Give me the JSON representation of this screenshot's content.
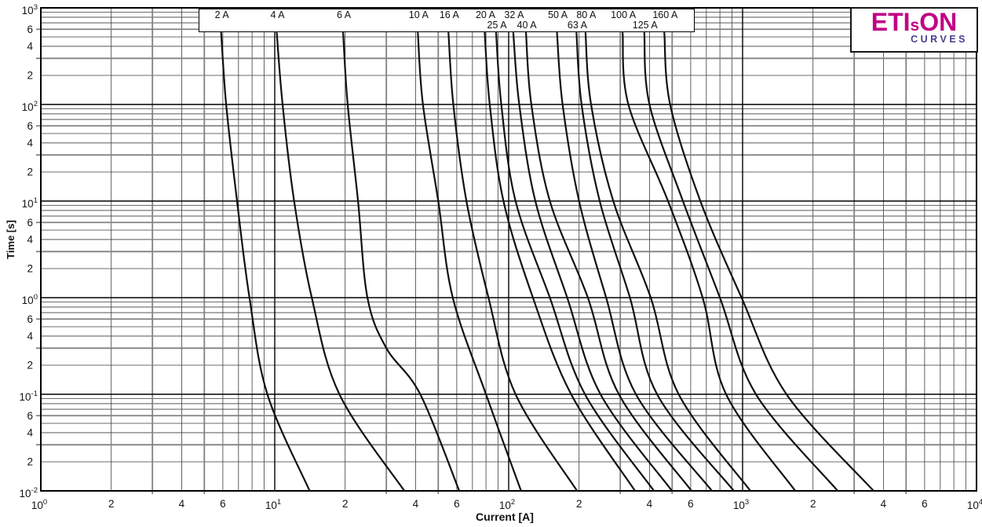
{
  "logo": {
    "brand_primary": "ETI",
    "brand_small": "s",
    "brand_secondary": "ON",
    "subtitle": "CURVES",
    "color_primary": "#C10087",
    "color_secondary": "#45418F"
  },
  "axes": {
    "x": {
      "label": "Current [A]",
      "unit": "A",
      "scale": "log",
      "decade_exponents": [
        0,
        1,
        2,
        3,
        4
      ],
      "sub_tick_labels": [
        2,
        4,
        6
      ],
      "range": [
        1,
        10000
      ]
    },
    "y": {
      "label": "Time [s]",
      "unit": "s",
      "scale": "log",
      "decade_exponents": [
        3,
        2,
        1,
        0,
        -1,
        -2
      ],
      "sub_tick_labels": [
        2,
        4,
        6
      ],
      "range": [
        0.01,
        1000
      ]
    }
  },
  "chart_data": {
    "type": "line",
    "title": "",
    "xlabel": "Current [A]",
    "ylabel": "Time [s]",
    "xlim": [
      1,
      10000
    ],
    "ylim": [
      0.01,
      1000
    ],
    "grid": "log-log, all minor decade lines shown, emphasized lines at 3/6 (horizontal) and 3/5 (vertical)",
    "legend_position": "label band across top of plot",
    "curve_color": "#111111",
    "series": [
      {
        "name": "2 A",
        "rating_A": 2,
        "label_row": 1,
        "points_time_current": [
          [
            550,
            5.9
          ],
          [
            100,
            6.2
          ],
          [
            10,
            6.9
          ],
          [
            1,
            7.8
          ],
          [
            0.1,
            9.3
          ],
          [
            0.01,
            14.1
          ]
        ]
      },
      {
        "name": "4 A",
        "rating_A": 4,
        "label_row": 1,
        "points_time_current": [
          [
            550,
            10.2
          ],
          [
            100,
            10.8
          ],
          [
            10,
            12.1
          ],
          [
            1,
            14.4
          ],
          [
            0.1,
            18.9
          ],
          [
            0.01,
            35.8
          ]
        ]
      },
      {
        "name": "6 A",
        "rating_A": 6,
        "label_row": 1,
        "points_time_current": [
          [
            550,
            19.6
          ],
          [
            100,
            20.5
          ],
          [
            10,
            22.7
          ],
          [
            1,
            24.9
          ],
          [
            0.3,
            30
          ],
          [
            0.1,
            41.9
          ],
          [
            0.01,
            61.5
          ]
        ]
      },
      {
        "name": "10 A",
        "rating_A": 10,
        "label_row": 1,
        "points_time_current": [
          [
            550,
            40.9
          ],
          [
            100,
            43
          ],
          [
            10,
            50
          ],
          [
            1,
            57.7
          ],
          [
            0.1,
            80
          ],
          [
            0.01,
            113
          ]
        ]
      },
      {
        "name": "16 A",
        "rating_A": 16,
        "label_row": 1,
        "points_time_current": [
          [
            550,
            55.3
          ],
          [
            100,
            58
          ],
          [
            10,
            66
          ],
          [
            1,
            82
          ],
          [
            0.1,
            107
          ],
          [
            0.01,
            196
          ]
        ]
      },
      {
        "name": "20 A",
        "rating_A": 20,
        "label_row": 1,
        "points_time_current": [
          [
            550,
            79
          ],
          [
            100,
            83
          ],
          [
            10,
            95
          ],
          [
            1,
            127
          ],
          [
            0.1,
            185
          ],
          [
            0.01,
            347
          ]
        ]
      },
      {
        "name": "25 A",
        "rating_A": 25,
        "label_row": 2,
        "points_time_current": [
          [
            550,
            88.4
          ],
          [
            100,
            93
          ],
          [
            10,
            107
          ],
          [
            1,
            150
          ],
          [
            0.1,
            212
          ],
          [
            0.01,
            418
          ]
        ]
      },
      {
        "name": "32 A",
        "rating_A": 32,
        "label_row": 1,
        "points_time_current": [
          [
            550,
            104.7
          ],
          [
            100,
            111
          ],
          [
            10,
            130
          ],
          [
            1,
            178
          ],
          [
            0.1,
            247
          ],
          [
            0.01,
            499
          ]
        ]
      },
      {
        "name": "40 A",
        "rating_A": 40,
        "label_row": 2,
        "points_time_current": [
          [
            550,
            118.6
          ],
          [
            100,
            125
          ],
          [
            10,
            150
          ],
          [
            1,
            218
          ],
          [
            0.1,
            296
          ],
          [
            0.01,
            605
          ]
        ]
      },
      {
        "name": "50 A",
        "rating_A": 50,
        "label_row": 1,
        "points_time_current": [
          [
            550,
            161
          ],
          [
            100,
            170
          ],
          [
            10,
            200
          ],
          [
            1,
            261
          ],
          [
            0.1,
            350
          ],
          [
            0.01,
            740
          ]
        ]
      },
      {
        "name": "63 A",
        "rating_A": 63,
        "label_row": 2,
        "points_time_current": [
          [
            550,
            195
          ],
          [
            100,
            205
          ],
          [
            10,
            245
          ],
          [
            1,
            330
          ],
          [
            0.1,
            431
          ],
          [
            0.01,
            918
          ]
        ]
      },
      {
        "name": "80 A",
        "rating_A": 80,
        "label_row": 1,
        "points_time_current": [
          [
            550,
            213
          ],
          [
            100,
            225
          ],
          [
            10,
            280
          ],
          [
            1,
            405
          ],
          [
            0.1,
            533
          ],
          [
            0.01,
            1080
          ]
        ]
      },
      {
        "name": "100 A",
        "rating_A": 100,
        "label_row": 1,
        "points_time_current": [
          [
            550,
            307
          ],
          [
            100,
            325
          ],
          [
            10,
            480
          ],
          [
            1,
            675
          ],
          [
            0.1,
            850
          ],
          [
            0.01,
            1680
          ]
        ]
      },
      {
        "name": "125 A",
        "rating_A": 125,
        "label_row": 2,
        "points_time_current": [
          [
            550,
            380
          ],
          [
            100,
            400
          ],
          [
            10,
            556
          ],
          [
            1,
            800
          ],
          [
            0.1,
            1140
          ],
          [
            0.01,
            2550
          ]
        ]
      },
      {
        "name": "160 A",
        "rating_A": 160,
        "label_row": 1,
        "points_time_current": [
          [
            550,
            463
          ],
          [
            100,
            490
          ],
          [
            10,
            660
          ],
          [
            1,
            990
          ],
          [
            0.1,
            1540
          ],
          [
            0.01,
            3630
          ]
        ]
      }
    ]
  }
}
